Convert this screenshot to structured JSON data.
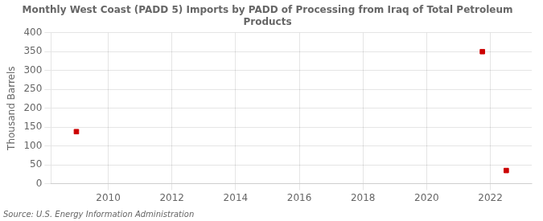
{
  "chart_data": {
    "type": "scatter",
    "title": "Monthly West Coast (PADD 5) Imports by PADD of Processing from Iraq of Total Petroleum\nProducts",
    "ylabel": "Thousand Barrels",
    "annotations": [
      "Source: U.S. Energy Information Administration"
    ],
    "x": [
      2009.0,
      2021.75,
      2022.5
    ],
    "values": [
      138,
      350,
      35
    ],
    "color": "#cc0000",
    "marker": "square",
    "xlim": [
      2008.2,
      2023.3
    ],
    "ylim": [
      0,
      400
    ],
    "xticks": [
      2010,
      2012,
      2014,
      2016,
      2018,
      2020,
      2022
    ],
    "yticks": [
      0,
      50,
      100,
      150,
      200,
      250,
      300,
      350,
      400
    ],
    "grid": true
  }
}
